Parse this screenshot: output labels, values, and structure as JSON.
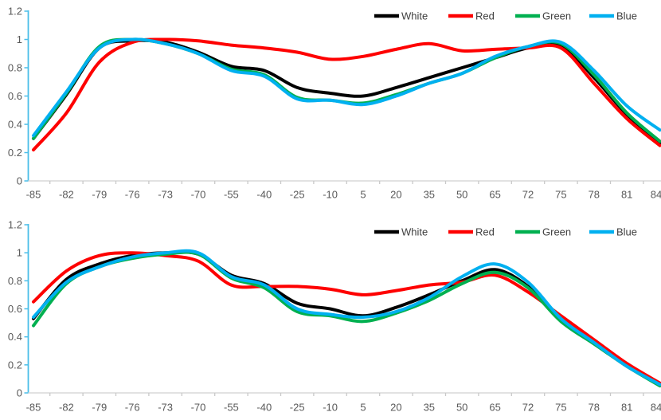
{
  "page": {
    "background": "#FFFFFF"
  },
  "palette": {
    "series_white": "#000000",
    "series_red": "#FE0000",
    "series_green": "#00B050",
    "series_blue": "#00B0F0",
    "y_axis_line": "#4BBEE8",
    "x_axis_line": "#D9D9D9",
    "x_tick": "#C9C9C9",
    "tick_label": "#595959",
    "legend_label": "#404040"
  },
  "chart_data": [
    {
      "id": "top-chart",
      "type": "line",
      "smooth": true,
      "grid": false,
      "title": "",
      "xlabel": "",
      "ylabel": "",
      "legend_position": "top-right-inside",
      "ylim": [
        0,
        1.2
      ],
      "yticks": [
        "0",
        "0.2",
        "0.4",
        "0.6",
        "0.8",
        "1",
        "1.2"
      ],
      "categories": [
        "-85",
        "-82",
        "-79",
        "-76",
        "-73",
        "-70",
        "-55",
        "-40",
        "-25",
        "-10",
        "5",
        "20",
        "35",
        "50",
        "65",
        "72",
        "75",
        "78",
        "81",
        "84"
      ],
      "series": [
        {
          "name": "White",
          "color": "series_white",
          "values": [
            0.3,
            0.61,
            0.94,
            0.99,
            0.98,
            0.91,
            0.81,
            0.78,
            0.66,
            0.62,
            0.6,
            0.66,
            0.73,
            0.8,
            0.87,
            0.94,
            0.96,
            0.73,
            0.47,
            0.27
          ]
        },
        {
          "name": "Red",
          "color": "series_red",
          "values": [
            0.22,
            0.48,
            0.84,
            0.98,
            1.0,
            0.99,
            0.96,
            0.94,
            0.91,
            0.86,
            0.88,
            0.93,
            0.97,
            0.92,
            0.93,
            0.94,
            0.94,
            0.69,
            0.44,
            0.25
          ]
        },
        {
          "name": "Green",
          "color": "series_green",
          "values": [
            0.3,
            0.62,
            0.95,
            1.0,
            0.97,
            0.9,
            0.79,
            0.75,
            0.59,
            0.57,
            0.55,
            0.61,
            0.69,
            0.76,
            0.87,
            0.95,
            0.97,
            0.75,
            0.48,
            0.28
          ]
        },
        {
          "name": "Blue",
          "color": "series_blue",
          "values": [
            0.32,
            0.63,
            0.94,
            1.0,
            0.97,
            0.9,
            0.78,
            0.74,
            0.58,
            0.57,
            0.54,
            0.6,
            0.69,
            0.76,
            0.88,
            0.95,
            0.98,
            0.78,
            0.53,
            0.36
          ]
        }
      ]
    },
    {
      "id": "bottom-chart",
      "type": "line",
      "smooth": true,
      "grid": false,
      "title": "",
      "xlabel": "",
      "ylabel": "",
      "legend_position": "top-right-inside",
      "ylim": [
        0,
        1.2
      ],
      "yticks": [
        "0",
        "0.2",
        "0.4",
        "0.6",
        "0.8",
        "1",
        "1.2"
      ],
      "categories": [
        "-85",
        "-82",
        "-79",
        "-76",
        "-73",
        "-70",
        "-55",
        "-40",
        "-25",
        "-10",
        "5",
        "20",
        "35",
        "50",
        "65",
        "72",
        "75",
        "78",
        "81",
        "84"
      ],
      "series": [
        {
          "name": "White",
          "color": "series_white",
          "values": [
            0.53,
            0.81,
            0.92,
            0.98,
            1.0,
            0.99,
            0.84,
            0.78,
            0.64,
            0.6,
            0.55,
            0.61,
            0.7,
            0.8,
            0.88,
            0.76,
            0.52,
            0.36,
            0.19,
            0.06
          ]
        },
        {
          "name": "Red",
          "color": "series_red",
          "values": [
            0.65,
            0.87,
            0.98,
            1.0,
            0.98,
            0.94,
            0.77,
            0.76,
            0.76,
            0.74,
            0.7,
            0.73,
            0.77,
            0.79,
            0.84,
            0.72,
            0.55,
            0.38,
            0.21,
            0.07
          ]
        },
        {
          "name": "Green",
          "color": "series_green",
          "values": [
            0.48,
            0.78,
            0.9,
            0.96,
            0.99,
            0.99,
            0.82,
            0.75,
            0.58,
            0.55,
            0.51,
            0.57,
            0.66,
            0.78,
            0.86,
            0.75,
            0.51,
            0.35,
            0.19,
            0.05
          ]
        },
        {
          "name": "Blue",
          "color": "series_blue",
          "values": [
            0.54,
            0.79,
            0.9,
            0.97,
            1.0,
            1.0,
            0.83,
            0.77,
            0.6,
            0.56,
            0.54,
            0.58,
            0.68,
            0.83,
            0.92,
            0.79,
            0.53,
            0.36,
            0.19,
            0.06
          ]
        }
      ]
    }
  ]
}
